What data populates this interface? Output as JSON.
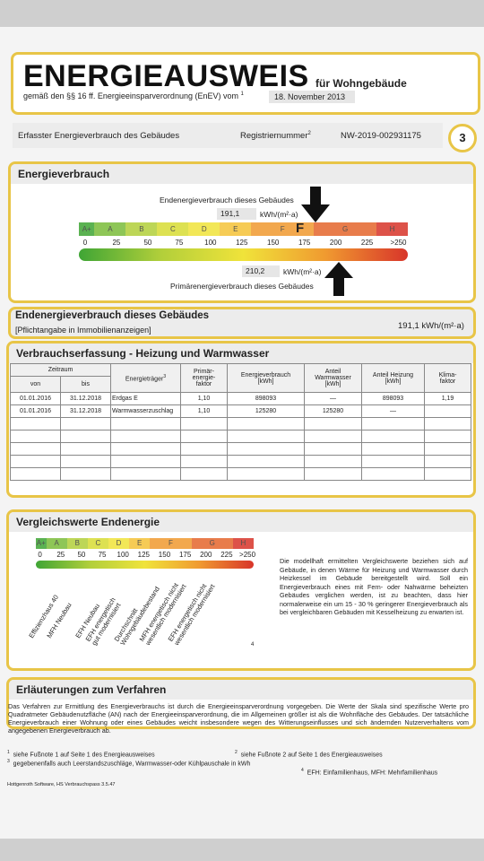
{
  "header": {
    "title": "ENERGIEAUSWEIS",
    "subtitle": "für Wohngebäude",
    "legal_prefix": "gemäß den §§ 16 ff. Energieeinsparverordnung (EnEV) vom",
    "legal_sup": "1",
    "date": "18. November 2013"
  },
  "registration": {
    "left_label": "Erfasster Energieverbrauch des Gebäudes",
    "reg_label": "Registriernummer",
    "reg_sup": "2",
    "reg_value": "NW-2019-002931175",
    "page_number": "3"
  },
  "energy": {
    "title": "Energieverbrauch",
    "end_label": "Endenergieverbrauch dieses Gebäudes",
    "end_value": "191,1",
    "end_unit": "kWh/(m²·a)",
    "primary_value": "210,2",
    "primary_unit": "kWh/(m²·a)",
    "primary_label": "Primärenergieverbrauch dieses Gebäudes",
    "class_marker": "F",
    "classes": [
      "A+",
      "A",
      "B",
      "C",
      "D",
      "E",
      "F",
      "G",
      "H"
    ],
    "class_colors": [
      "#3fa535",
      "#7bbd3a",
      "#b2cf3a",
      "#d8dc35",
      "#f0e33a",
      "#f5c338",
      "#f09a30",
      "#e4662c",
      "#d8352a"
    ],
    "ticks": [
      "0",
      "25",
      "50",
      "75",
      "100",
      "125",
      "150",
      "175",
      "200",
      "225",
      ">250"
    ],
    "end_arrow_value": 191.1,
    "primary_arrow_value": 210.2
  },
  "endenergie": {
    "title": "Endenergieverbrauch dieses Gebäudes",
    "note": "[Pflichtangabe in Immobilienanzeigen]",
    "value": "191,1 kWh/(m²·a)"
  },
  "verbrauch": {
    "title": "Verbrauchserfassung - Heizung und Warmwasser",
    "headers": {
      "zeitraum": "Zeitraum",
      "von": "von",
      "bis": "bis",
      "traeger": "Energieträger",
      "traeger_sup": "3",
      "faktor": "Primär-\nenergie-\nfaktor",
      "verbrauch": "Energieverbrauch\n[kWh]",
      "warmwasser": "Anteil\nWarmwasser\n[kWh]",
      "heizung": "Anteil Heizung\n[kWh]",
      "klima": "Klima-\nfaktor"
    },
    "rows": [
      {
        "von": "01.01.2016",
        "bis": "31.12.2018",
        "traeger": "Erdgas E",
        "faktor": "1,10",
        "verbrauch": "898093",
        "warmwasser": "—",
        "heizung": "898093",
        "klima": "1,19"
      },
      {
        "von": "01.01.2016",
        "bis": "31.12.2018",
        "traeger": "Warmwasserzuschlag",
        "faktor": "1,10",
        "verbrauch": "125280",
        "warmwasser": "125280",
        "heizung": "—",
        "klima": ""
      }
    ]
  },
  "vergleich": {
    "title": "Vergleichswerte Endenergie",
    "rotated_labels": [
      "Effizienzhaus 40",
      "MFH Neubau",
      "EFH Neubau",
      "EFH energetisch\ngut modernisiert",
      "Durchschnitt\nWohngebäudebestand",
      "MFH energetisch nicht\nwesentlich modernisiert",
      "EFH energetisch nicht\nwesentlich modernisiert"
    ],
    "label_marker": "4",
    "text": "Die modellhaft ermittelten Vergleichswerte beziehen sich auf Gebäude, in denen Wärme für Heizung und Warmwasser durch Heizkessel im Gebäude bereitgestellt wird. Soll ein Energieverbrauch eines mit Fern- oder Nahwärme beheizten Gebäudes verglichen werden, ist zu beachten, dass hier normalerweise ein um 15 - 30 % geringerer Energieverbrauch als bei vergleichbaren Gebäuden mit Kesselheizung zu erwarten ist."
  },
  "erlaeuterung": {
    "title": "Erläuterungen zum Verfahren",
    "text": "Das Verfahren zur Ermittlung des Energieverbrauchs ist durch die Energieeinsparverordnung vorgegeben. Die Werte der Skala sind spezifische Werte pro Quadratmeter Gebäudenutzfläche (AN) nach der Energieeinsparverordnung, die im Allgemeinen größer ist als die Wohnfläche des Gebäudes. Der tatsächliche Energieverbrauch einer Wohnung oder eines Gebäudes weicht insbesondere wegen des Witterungseinflusses und sich ändernden Nutzerverhaltens vom angegebenen Energieverbrauch ab."
  },
  "footnotes": {
    "f1": "siehe Fußnote 1 auf Seite 1 des Energieausweises",
    "f2": "siehe Fußnote 2 auf Seite 1 des Energieausweises",
    "f3": "gegebenenfalls auch Leerstandszuschläge, Warmwasser-oder Kühlpauschale in kWh",
    "f4": "EFH: Einfamilienhaus, MFH: Mehrfamilienhaus",
    "software": "Hottgenroth Software, HS Verbrauchspass 3.5.47"
  }
}
